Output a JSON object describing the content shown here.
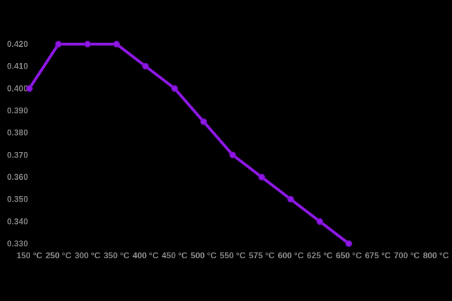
{
  "chart_data": {
    "type": "line",
    "title": "",
    "xlabel": "",
    "ylabel": "",
    "grid": false,
    "legend": null,
    "background_color": "#000000",
    "label_color": "#8a8a8a",
    "line_color": "#9018E8",
    "marker_outline_color": "#7a10c9",
    "marker": "circle",
    "categories": [
      "150 °C",
      "250 °C",
      "300 °C",
      "350 °C",
      "400 °C",
      "450 °C",
      "500 °C",
      "550 °C",
      "575 °C",
      "600 °C",
      "625 °C",
      "650 °C",
      "675 °C",
      "700 °C",
      "800 °C"
    ],
    "values": [
      0.4,
      0.42,
      0.42,
      0.42,
      0.41,
      0.4,
      0.385,
      0.37,
      0.36,
      0.35,
      0.34,
      0.33,
      null,
      null,
      null
    ],
    "y_tick_labels": [
      "0.420",
      "0.410",
      "0.400",
      "0.390",
      "0.380",
      "0.370",
      "0.360",
      "0.350",
      "0.340",
      "0.330"
    ],
    "y_tick_values": [
      0.42,
      0.41,
      0.4,
      0.39,
      0.38,
      0.37,
      0.36,
      0.35,
      0.34,
      0.33
    ],
    "ylim": [
      0.33,
      0.42
    ]
  }
}
